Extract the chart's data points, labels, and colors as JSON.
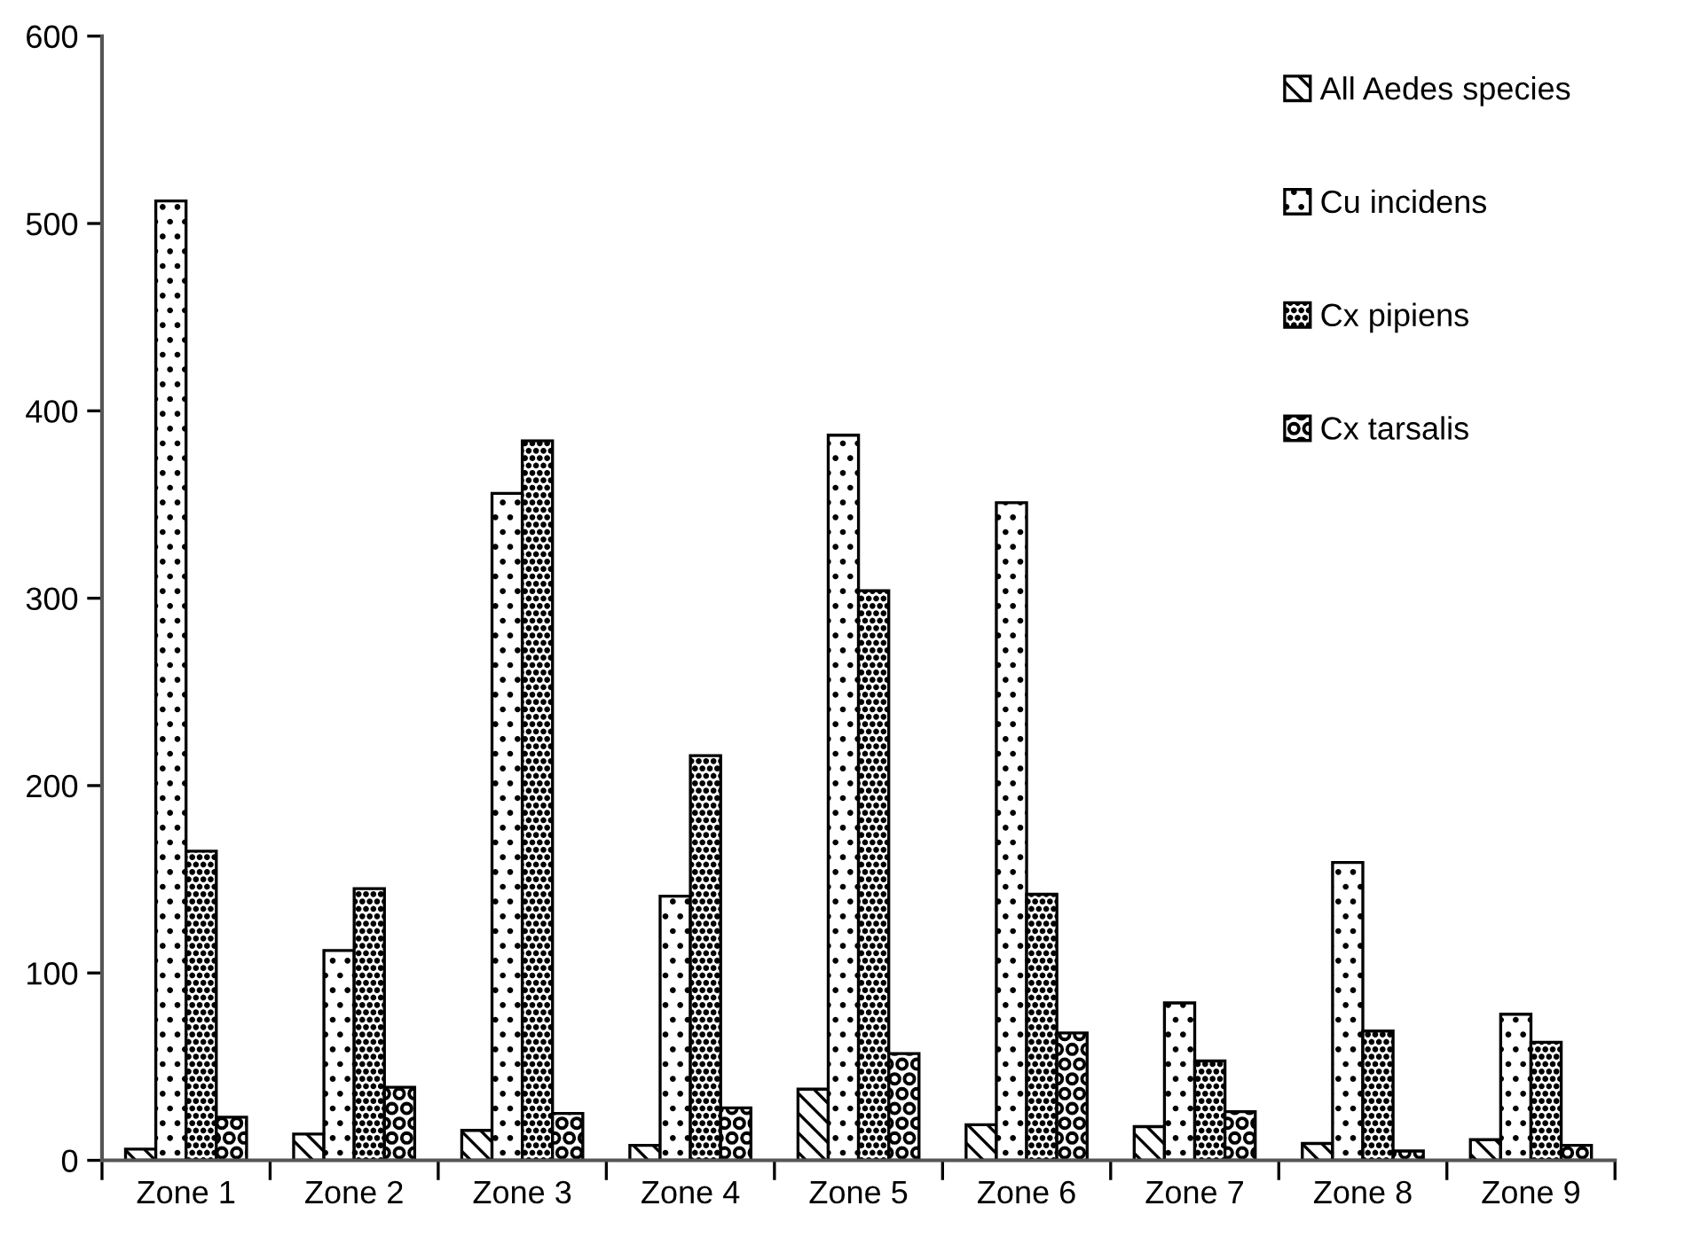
{
  "chart_data": {
    "type": "bar",
    "categories": [
      "Zone 1",
      "Zone 2",
      "Zone 3",
      "Zone 4",
      "Zone 5",
      "Zone 6",
      "Zone 7",
      "Zone 8",
      "Zone 9"
    ],
    "series": [
      {
        "name": "All Aedes species",
        "color": "#000000",
        "values": [
          6,
          14,
          16,
          8,
          38,
          19,
          18,
          9,
          11
        ]
      },
      {
        "name": "Cu incidens",
        "color": "#000000",
        "values": [
          512,
          112,
          356,
          141,
          387,
          351,
          84,
          159,
          78
        ]
      },
      {
        "name": "Cx pipiens",
        "color": "#000000",
        "values": [
          165,
          145,
          384,
          216,
          304,
          142,
          53,
          69,
          63
        ]
      },
      {
        "name": "Cx tarsalis",
        "color": "#000000",
        "values": [
          23,
          39,
          25,
          28,
          57,
          68,
          26,
          5,
          8
        ]
      }
    ],
    "ylim": [
      0,
      600
    ],
    "yticks": [
      0,
      100,
      200,
      300,
      400,
      500,
      600
    ],
    "grid": false,
    "legend": "top right"
  }
}
